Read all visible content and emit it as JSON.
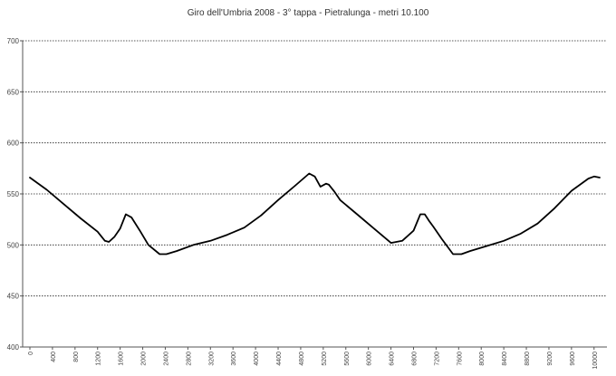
{
  "chart_data": {
    "type": "line",
    "title": "Giro dell'Umbria 2008 - 3° tappa - Pietralunga - metri 10.100",
    "xlabel": "",
    "ylabel": "",
    "xlim": [
      0,
      10100
    ],
    "ylim": [
      400,
      700
    ],
    "yticks": [
      400,
      450,
      500,
      550,
      600,
      650,
      700
    ],
    "ytick_labels": [
      "400",
      "450",
      "500",
      "550",
      "600",
      "650",
      "700"
    ],
    "xticks": [
      0,
      400,
      800,
      1200,
      1600,
      2000,
      2400,
      2800,
      3200,
      3600,
      4000,
      4400,
      4800,
      5200,
      5600,
      6000,
      6400,
      6800,
      7200,
      7600,
      8000,
      8400,
      8800,
      9200,
      9600,
      10000
    ],
    "xtick_labels": [
      "0",
      "400",
      "800",
      "1200",
      "1600",
      "2000",
      "2400",
      "2800",
      "3200",
      "3600",
      "4000",
      "4400",
      "4800",
      "5200",
      "5600",
      "6000",
      "6400",
      "6800",
      "7200",
      "7600",
      "8000",
      "8400",
      "8800",
      "9200",
      "9600",
      "10000"
    ],
    "grid": "horizontal dotted",
    "line_color": "#000000",
    "series": [
      {
        "x": [
          0,
          300,
          600,
          900,
          1200,
          1330,
          1400,
          1500,
          1600,
          1700,
          1800,
          1950,
          2100,
          2300,
          2420,
          2600,
          2900,
          3200,
          3500,
          3800,
          4100,
          4400,
          4700,
          4950,
          5050,
          5150,
          5250,
          5300,
          5400,
          5500,
          5800,
          6100,
          6400,
          6600,
          6700,
          6800,
          6920,
          7000,
          7070,
          7150,
          7300,
          7500,
          7650,
          7800,
          8100,
          8400,
          8700,
          9000,
          9300,
          9600,
          9900,
          10000,
          10100
        ],
        "y": [
          566,
          554,
          540,
          526,
          513,
          504,
          503,
          508,
          516,
          530,
          527,
          514,
          500,
          491,
          491,
          494,
          500,
          504,
          510,
          517,
          529,
          544,
          558,
          570,
          567,
          557,
          560,
          559,
          552,
          544,
          530,
          516,
          502,
          504,
          509,
          514,
          530,
          530,
          524,
          518,
          506,
          491,
          491,
          494,
          499,
          504,
          511,
          521,
          536,
          553,
          565,
          567,
          566
        ]
      }
    ]
  }
}
